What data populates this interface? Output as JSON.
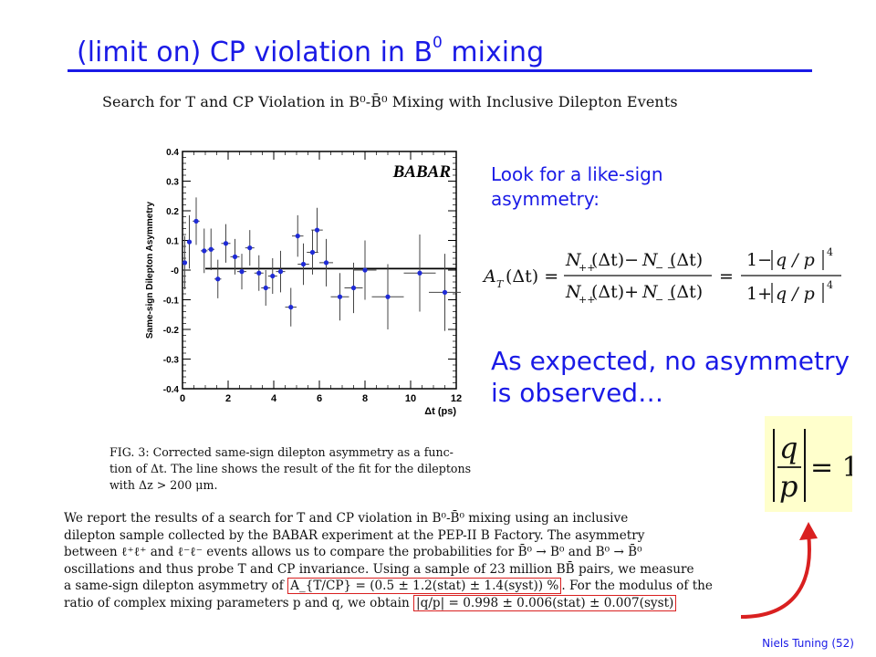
{
  "slide": {
    "title_main": "(limit on) CP violation in B",
    "title_sup": "0",
    "title_tail": " mixing",
    "footer": "Niels Tuning (52)"
  },
  "paper": {
    "title": "Search for T and CP Violation in B⁰-B̄⁰ Mixing with Inclusive Dilepton Events",
    "caption_lines": [
      "FIG. 3: Corrected same-sign dilepton asymmetry as a func-",
      "tion of Δt. The line shows the result of the fit for the dileptons",
      "with Δz > 200 μm."
    ],
    "abstract_lines": [
      "We report the results of a search for T and CP violation in B⁰-B̄⁰ mixing using an inclusive",
      "dilepton sample collected by the BABAR experiment at the PEP-II B Factory.  The asymmetry",
      "between ℓ⁺ℓ⁺ and ℓ⁻ℓ⁻ events allows us to compare the probabilities for B̄⁰ → B⁰ and B⁰ → B̄⁰",
      "oscillations and thus probe T and CP invariance. Using a sample of 23 million BB̄ pairs, we measure",
      "a same-sign dilepton asymmetry of",
      "A_{T/CP} = (0.5 ± 1.2(stat) ± 1.4(syst)) %",
      ". For the modulus of the",
      "ratio of complex mixing parameters p and q, we obtain",
      "|q/p| = 0.998 ± 0.006(stat) ± 0.007(syst)"
    ]
  },
  "text": {
    "look_for": "Look for a like-sign asymmetry:",
    "expected": "As expected, no asymmetry is observed…",
    "qp_result": "= 1"
  },
  "colors": {
    "accent": "#1a1ae6",
    "highlight_box": "#d92020",
    "marker": "#1f2bd6",
    "result_bg": "#ffffcc"
  },
  "chart_data": {
    "type": "scatter",
    "logo": "BABAR",
    "xlabel": "Δt (ps)",
    "ylabel": "Same-sign Dilepton Asymmetry",
    "xlim": [
      0,
      12
    ],
    "ylim": [
      -0.4,
      0.4
    ],
    "xticks": [
      "0",
      "2",
      "4",
      "6",
      "8",
      "10",
      "12"
    ],
    "yticks": [
      "0.4",
      "0.3",
      "0.2",
      "0.1",
      "-0",
      "-0.1",
      "-0.2",
      "-0.3",
      "-0.4"
    ],
    "fit_line": {
      "y": 0.005,
      "x_range": [
        1.0,
        12
      ]
    },
    "series": [
      {
        "points": [
          {
            "x": 0.1,
            "y": 0.025,
            "xerr": 0.1,
            "yerr": 0.09
          },
          {
            "x": 0.3,
            "y": 0.095,
            "xerr": 0.1,
            "yerr": 0.09
          },
          {
            "x": 0.6,
            "y": 0.165,
            "xerr": 0.15,
            "yerr": 0.08
          },
          {
            "x": 0.95,
            "y": 0.065,
            "xerr": 0.15,
            "yerr": 0.075
          },
          {
            "x": 1.25,
            "y": 0.07,
            "xerr": 0.15,
            "yerr": 0.07
          },
          {
            "x": 1.55,
            "y": -0.03,
            "xerr": 0.15,
            "yerr": 0.065
          },
          {
            "x": 1.9,
            "y": 0.09,
            "xerr": 0.2,
            "yerr": 0.065
          },
          {
            "x": 2.3,
            "y": 0.045,
            "xerr": 0.2,
            "yerr": 0.06
          },
          {
            "x": 2.6,
            "y": -0.005,
            "xerr": 0.2,
            "yerr": 0.06
          },
          {
            "x": 2.95,
            "y": 0.075,
            "xerr": 0.2,
            "yerr": 0.06
          },
          {
            "x": 3.35,
            "y": -0.01,
            "xerr": 0.2,
            "yerr": 0.06
          },
          {
            "x": 3.65,
            "y": -0.06,
            "xerr": 0.2,
            "yerr": 0.06
          },
          {
            "x": 3.95,
            "y": -0.02,
            "xerr": 0.2,
            "yerr": 0.06
          },
          {
            "x": 4.3,
            "y": -0.005,
            "xerr": 0.2,
            "yerr": 0.07
          },
          {
            "x": 4.75,
            "y": -0.125,
            "xerr": 0.25,
            "yerr": 0.065
          },
          {
            "x": 5.05,
            "y": 0.115,
            "xerr": 0.25,
            "yerr": 0.07
          },
          {
            "x": 5.3,
            "y": 0.02,
            "xerr": 0.25,
            "yerr": 0.07
          },
          {
            "x": 5.7,
            "y": 0.06,
            "xerr": 0.25,
            "yerr": 0.075
          },
          {
            "x": 5.9,
            "y": 0.135,
            "xerr": 0.25,
            "yerr": 0.075
          },
          {
            "x": 6.3,
            "y": 0.025,
            "xerr": 0.3,
            "yerr": 0.08
          },
          {
            "x": 6.9,
            "y": -0.09,
            "xerr": 0.4,
            "yerr": 0.08
          },
          {
            "x": 7.5,
            "y": -0.06,
            "xerr": 0.4,
            "yerr": 0.085
          },
          {
            "x": 8.0,
            "y": 0.0,
            "xerr": 0.5,
            "yerr": 0.1
          },
          {
            "x": 9.0,
            "y": -0.09,
            "xerr": 0.7,
            "yerr": 0.11
          },
          {
            "x": 10.4,
            "y": -0.01,
            "xerr": 0.7,
            "yerr": 0.13
          },
          {
            "x": 11.5,
            "y": -0.075,
            "xerr": 0.7,
            "yerr": 0.13
          }
        ]
      }
    ]
  }
}
